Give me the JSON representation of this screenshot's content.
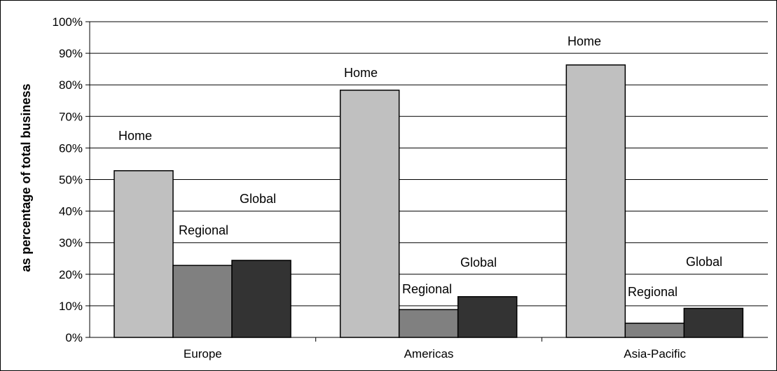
{
  "chart_data": {
    "type": "bar",
    "title": "",
    "xlabel": "",
    "ylabel": "as percentage of total business",
    "ylim": [
      0,
      100
    ],
    "yticks": [
      "0%",
      "10%",
      "20%",
      "30%",
      "40%",
      "50%",
      "60%",
      "70%",
      "80%",
      "90%",
      "100%"
    ],
    "grid": true,
    "legend": "none",
    "categories": [
      "Europe",
      "Americas",
      "Asia-Pacific"
    ],
    "series": [
      {
        "name": "Home",
        "color": "#c0c0c0",
        "values": [
          52.8,
          78.3,
          86.3
        ]
      },
      {
        "name": "Regional",
        "color": "#808080",
        "values": [
          22.8,
          8.8,
          4.5
        ]
      },
      {
        "name": "Global",
        "color": "#333333",
        "values": [
          24.4,
          12.9,
          9.2
        ]
      }
    ]
  }
}
